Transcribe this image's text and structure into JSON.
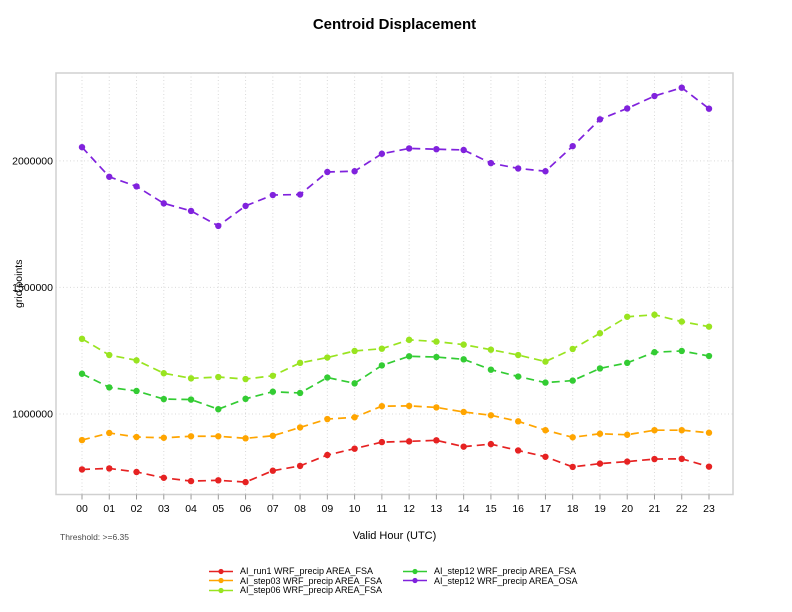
{
  "title": "Centroid Displacement",
  "threshold_note": "Threshold: >=6.35",
  "chart_data": {
    "type": "line",
    "title": "Centroid Displacement",
    "xlabel": "Valid Hour (UTC)",
    "ylabel": "grid points",
    "x_tick_labels": [
      "00",
      "01",
      "02",
      "03",
      "04",
      "05",
      "06",
      "07",
      "08",
      "09",
      "10",
      "11",
      "12",
      "13",
      "14",
      "15",
      "16",
      "17",
      "18",
      "19",
      "20",
      "21",
      "22",
      "23"
    ],
    "x": [
      0,
      1,
      2,
      3,
      4,
      5,
      6,
      7,
      8,
      9,
      10,
      11,
      12,
      13,
      14,
      15,
      16,
      17,
      18,
      19,
      20,
      21,
      22,
      23
    ],
    "y_ticks": [
      1000000,
      1500000,
      2000000
    ],
    "y_tick_labels": [
      "1000000",
      "1500000",
      "2000000"
    ],
    "ylim": [
      682000,
      2347000
    ],
    "grid": true,
    "line_style": "dashed-with-points",
    "legend_position": "bottom",
    "series": [
      {
        "name": "AI_run1 WRF_precip AREA_FSA",
        "color": "#e62222",
        "values": [
          781000,
          785000,
          771000,
          748000,
          735000,
          738000,
          731000,
          776000,
          795000,
          838000,
          863000,
          889000,
          892000,
          896000,
          871000,
          881000,
          856000,
          831000,
          791000,
          804000,
          812000,
          822000,
          823000,
          792000
        ]
      },
      {
        "name": "AI_step03 WRF_precip AREA_FSA",
        "color": "#ffa500",
        "values": [
          897000,
          925000,
          909000,
          906000,
          912000,
          912000,
          904000,
          914000,
          947000,
          980000,
          987000,
          1031000,
          1032000,
          1026000,
          1008000,
          995000,
          971000,
          936000,
          908000,
          922000,
          918000,
          936000,
          936000,
          926000
        ]
      },
      {
        "name": "AI_step06 WRF_precip AREA_FSA",
        "color": "#99e420",
        "values": [
          1297000,
          1233000,
          1212000,
          1161000,
          1141000,
          1146000,
          1138000,
          1151000,
          1202000,
          1223000,
          1249000,
          1258000,
          1293000,
          1286000,
          1274000,
          1254000,
          1233000,
          1207000,
          1257000,
          1319000,
          1384000,
          1392000,
          1365000,
          1345000
        ]
      },
      {
        "name": "AI_step12 WRF_precip AREA_FSA",
        "color": "#33cc33",
        "values": [
          1159000,
          1105000,
          1091000,
          1059000,
          1057000,
          1019000,
          1060000,
          1088000,
          1083000,
          1144000,
          1121000,
          1192000,
          1228000,
          1225000,
          1216000,
          1175000,
          1148000,
          1124000,
          1132000,
          1180000,
          1202000,
          1244000,
          1249000,
          1229000
        ]
      },
      {
        "name": "AI_step12 WRF_precip AREA_OSA",
        "color": "#8022dd",
        "values": [
          2054000,
          1937000,
          1899000,
          1832000,
          1802000,
          1743000,
          1822000,
          1865000,
          1867000,
          1956000,
          1959000,
          2028000,
          2049000,
          2046000,
          2043000,
          1991000,
          1970000,
          1959000,
          2058000,
          2164000,
          2207000,
          2256000,
          2289000,
          2206000
        ]
      }
    ],
    "legend_columns": [
      [
        0,
        1,
        2
      ],
      [
        3,
        4
      ]
    ],
    "colors": {
      "frame": "#d0d0d0",
      "grid": "#d9d9d9",
      "tick": "#9a9a9a",
      "text": "#000000"
    }
  }
}
